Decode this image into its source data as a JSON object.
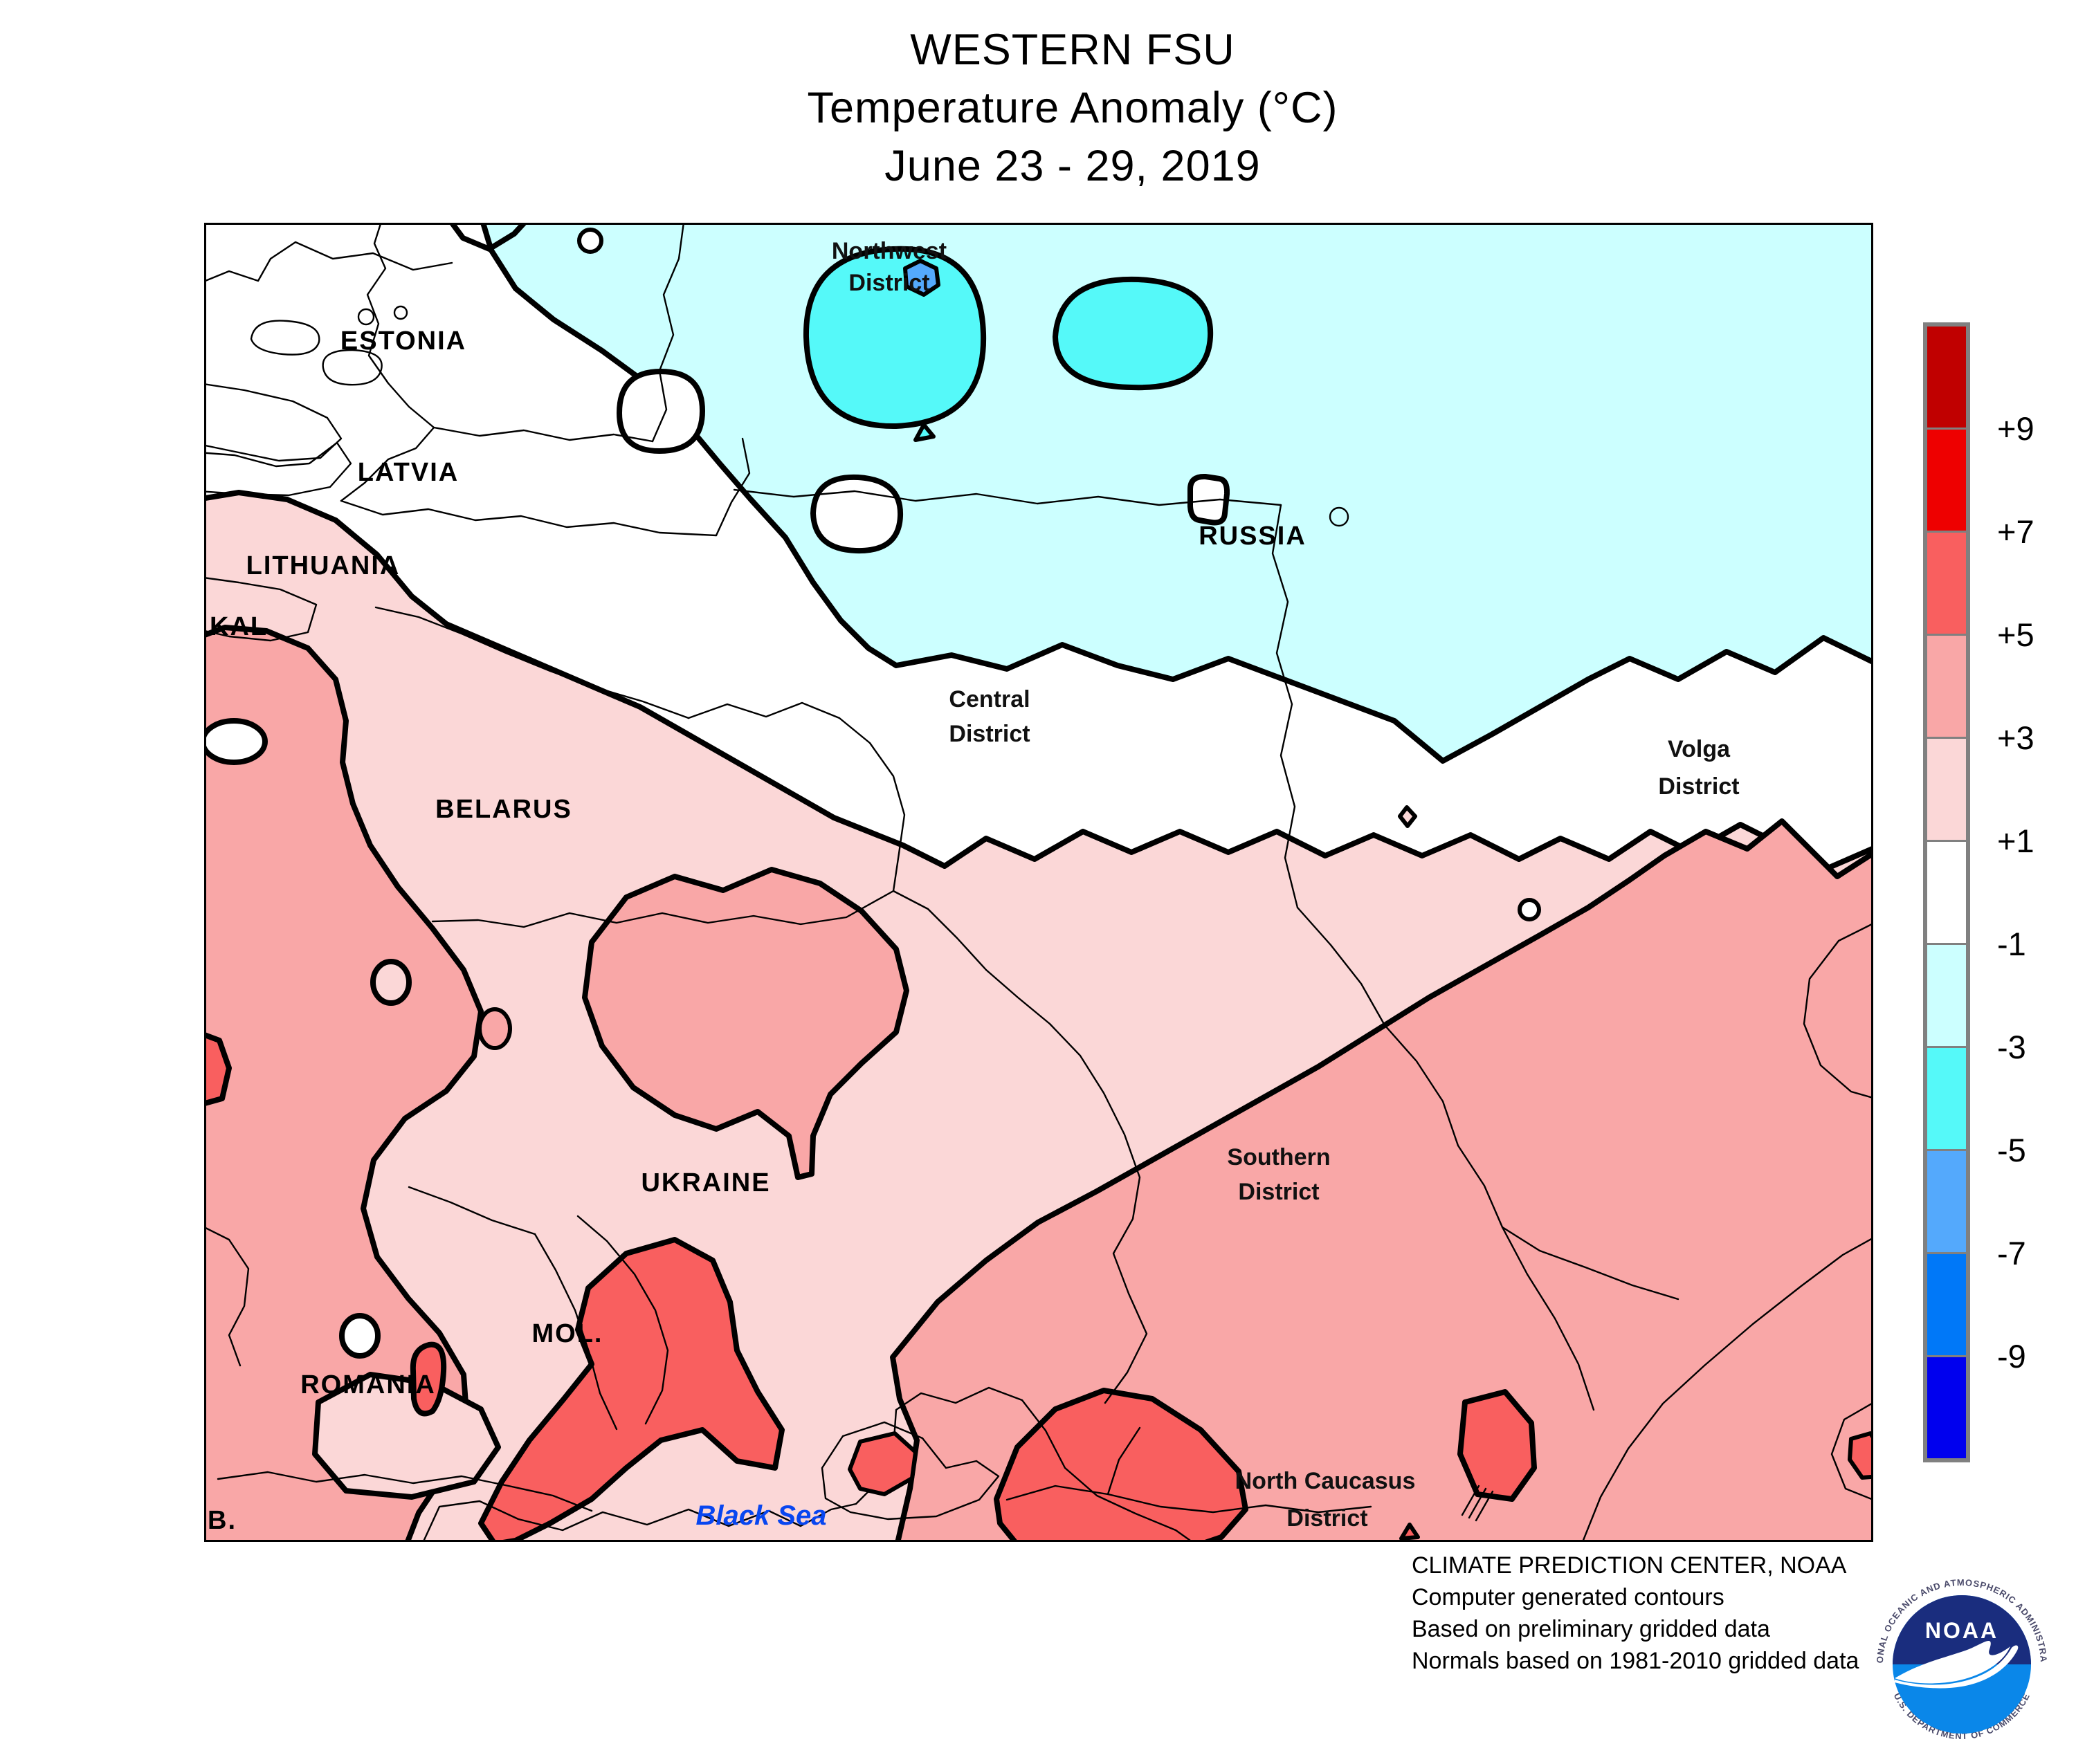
{
  "title": {
    "line1": "WESTERN FSU",
    "line2": "Temperature Anomaly (°C)",
    "line3": "June 23 - 29, 2019"
  },
  "colorbar": {
    "border_color": "#808080",
    "labels": [
      "+9",
      "+7",
      "+5",
      "+3",
      "+1",
      "-1",
      "-3",
      "-5",
      "-7",
      "-9"
    ],
    "cells": [
      {
        "level": "> +9",
        "color": "#C00000"
      },
      {
        "level": "+7 to +9",
        "color": "#EE0000"
      },
      {
        "level": "+5 to +7",
        "color": "#F95F5F"
      },
      {
        "level": "+3 to +5",
        "color": "#F9A7A7"
      },
      {
        "level": "+1 to +3",
        "color": "#FBD7D7"
      },
      {
        "level": "-1 to +1",
        "color": "#FFFFFF"
      },
      {
        "level": "-3 to -1",
        "color": "#CCFFFF"
      },
      {
        "level": "-5 to -3",
        "color": "#55F9F9"
      },
      {
        "level": "-7 to -5",
        "color": "#54A9FC"
      },
      {
        "level": "-9 to -7",
        "color": "#0078F8"
      },
      {
        "level": "< -9",
        "color": "#0000EE"
      }
    ]
  },
  "map": {
    "colors": {
      "plus1_3": "#FBD7D7",
      "plus3_5": "#F9A7A7",
      "plus5_7": "#F95F5F",
      "minus1_3": "#CCFFFF",
      "minus3_5": "#55F9F9",
      "minus5_7": "#54A9FC",
      "white": "#FFFFFF",
      "sea_label": "#0846F0"
    },
    "labels": {
      "estonia": "ESTONIA",
      "latvia": "LATVIA",
      "lithuania": "LITHUANIA",
      "kaliningrad": "KAL.",
      "belarus": "BELARUS",
      "russia": "RUSSIA",
      "ukraine": "UKRAINE",
      "moldova": "MOL.",
      "romania": "ROMANIA",
      "bulgaria": "B.",
      "black_sea": "Black Sea",
      "northwest_district": [
        "Northwest",
        "District"
      ],
      "central_district": [
        "Central",
        "District"
      ],
      "volga_district": [
        "Volga",
        "District"
      ],
      "southern_district": [
        "Southern",
        "District"
      ],
      "north_caucasus_district": [
        "North Caucasus",
        "District"
      ]
    }
  },
  "credits": {
    "lines": [
      "CLIMATE PREDICTION CENTER, NOAA",
      "Computer generated contours",
      "Based on preliminary gridded data",
      "Normals based on 1981-2010 gridded data"
    ]
  },
  "logo": {
    "name": "NOAA",
    "ring_top": "NATIONAL OCEANIC AND ATMOSPHERIC ADMINISTRATION",
    "ring_bottom": "U.S. DEPARTMENT OF COMMERCE",
    "navy": "#1A2D7E",
    "azure": "#0A87E9"
  }
}
